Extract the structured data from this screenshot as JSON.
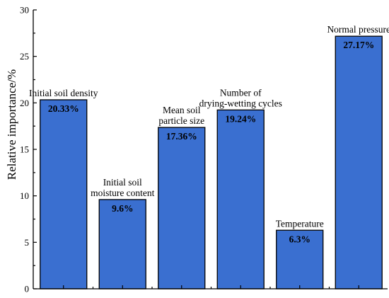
{
  "chart_data": {
    "type": "bar",
    "ylabel": "Relative importance/%",
    "ylim": [
      0,
      30
    ],
    "yticks": [
      0,
      5,
      10,
      15,
      20,
      25,
      30
    ],
    "grid": false,
    "categories": [
      [
        "Initial soil density"
      ],
      [
        "Initial soil",
        "moisture content"
      ],
      [
        "Mean soil",
        "particle size"
      ],
      [
        "Number of",
        "drying-wetting cycles"
      ],
      [
        "Temperature"
      ],
      [
        "Normal pressure"
      ]
    ],
    "values": [
      20.33,
      9.6,
      17.36,
      19.24,
      6.3,
      27.17
    ],
    "value_labels": [
      "20.33%",
      "9.6%",
      "17.36%",
      "19.24%",
      "6.3%",
      "27.17%"
    ],
    "bar_color": "#3a6fd0"
  }
}
